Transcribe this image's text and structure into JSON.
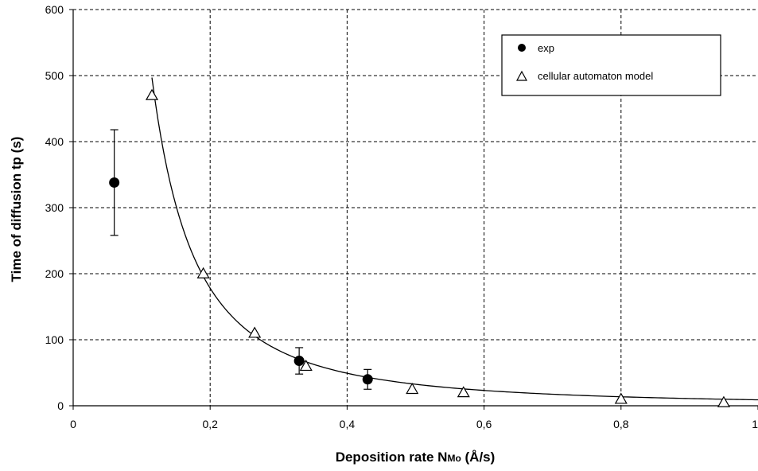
{
  "chart_data": {
    "type": "scatter",
    "xlabel_main": "Deposition rate N",
    "xlabel_sub": "Mo",
    "xlabel_unit": " (Å/s)",
    "ylabel": "Time of diffusion tp (s)",
    "xlim": [
      0,
      1
    ],
    "ylim": [
      0,
      600
    ],
    "x_ticks": [
      0,
      0.2,
      0.4,
      0.6,
      0.8,
      1
    ],
    "x_tick_labels": [
      "0",
      "0,2",
      "0,4",
      "0,6",
      "0,8",
      "1"
    ],
    "y_ticks": [
      0,
      100,
      200,
      300,
      400,
      500,
      600
    ],
    "y_tick_labels": [
      "0",
      "100",
      "200",
      "300",
      "400",
      "500",
      "600"
    ],
    "grid": true,
    "legend_position": "top-right",
    "series": [
      {
        "name": "exp",
        "marker": "filled-circle",
        "x": [
          0.06,
          0.33,
          0.43
        ],
        "y": [
          338,
          68,
          40
        ],
        "error": [
          80,
          20,
          15
        ]
      },
      {
        "name": "cellular automaton model",
        "marker": "open-triangle",
        "x": [
          0.115,
          0.19,
          0.265,
          0.34,
          0.495,
          0.57,
          0.8,
          0.95
        ],
        "y": [
          470,
          200,
          110,
          60,
          25,
          20,
          10,
          5
        ]
      }
    ],
    "fit_curve": {
      "x_start": 0.115,
      "x_end": 1.0,
      "y_start": 497,
      "y_end": 9
    }
  }
}
